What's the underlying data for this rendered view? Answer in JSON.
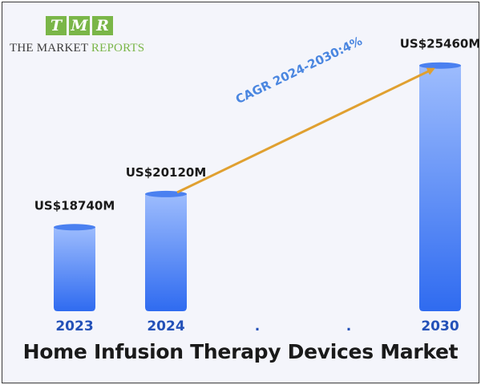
{
  "logo": {
    "letters": [
      "T",
      "M",
      "R"
    ],
    "line1": "THE MARKET ",
    "line2": "REPORTS",
    "accent": "#7ab648"
  },
  "chart_data": {
    "type": "bar",
    "title": "Home Infusion Therapy Devices Market",
    "categories": [
      "2023",
      "2024",
      ".",
      ".",
      "2030"
    ],
    "series": [
      {
        "values": [
          18740,
          20120,
          null,
          null,
          25460
        ]
      }
    ],
    "value_labels": [
      "US$18740M",
      "US$20120M",
      "",
      "",
      "US$25460M"
    ],
    "annotation": "CAGR 2024-2030:4%",
    "bar_color_top": "#9dbcfd",
    "bar_color_bottom": "#2f6bf0",
    "category_color": "#2451b8",
    "arrow_color": "#e0a030",
    "annotation_color": "#4a86e0"
  }
}
